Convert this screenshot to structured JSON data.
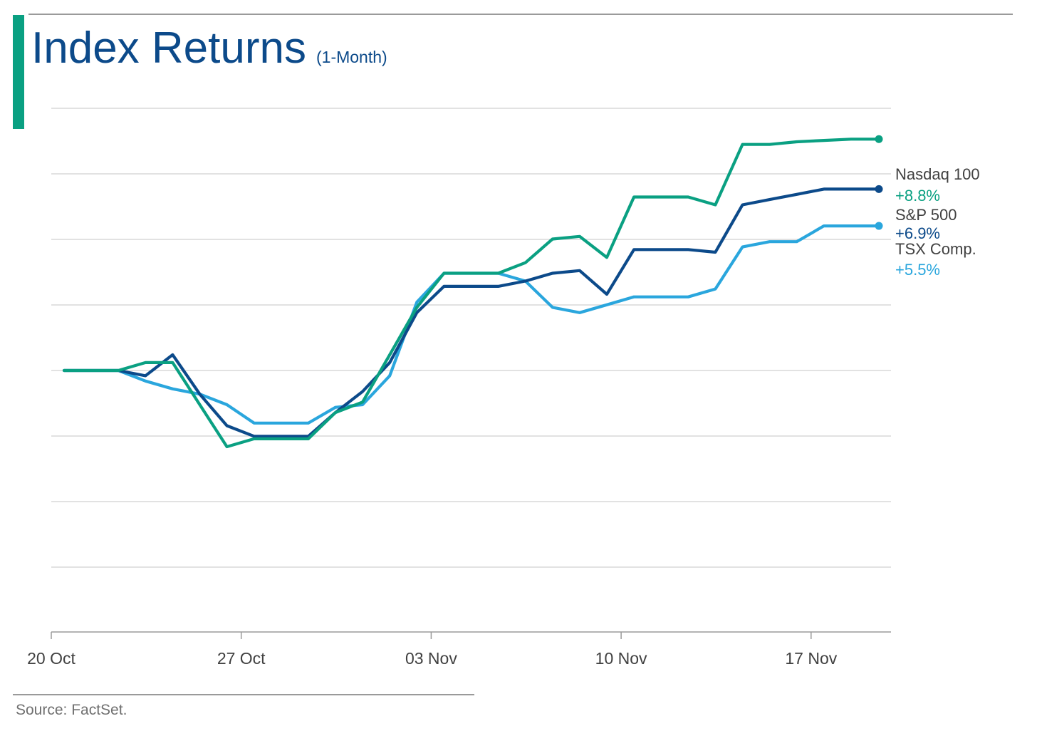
{
  "header": {
    "title": "Index Returns",
    "subtitle": "(1-Month)"
  },
  "footer": {
    "source": "Source: FactSet."
  },
  "colors": {
    "nasdaq": "#0aa082",
    "sp500": "#0c4a8a",
    "tsx": "#2aa6dd",
    "grid": "#d0d0d0",
    "axis": "#9a9a9a"
  },
  "chart_data": {
    "type": "line",
    "title": "Index Returns",
    "subtitle": "(1-Month)",
    "xlabel": "",
    "ylabel": "",
    "grid": true,
    "legend_position": "right",
    "x_ticks": [
      {
        "label": "20 Oct",
        "day": 0
      },
      {
        "label": "27 Oct",
        "day": 7
      },
      {
        "label": "03 Nov",
        "day": 14
      },
      {
        "label": "10 Nov",
        "day": 21
      },
      {
        "label": "17 Nov",
        "day": 28
      }
    ],
    "series": [
      {
        "key": "tsx",
        "name": "TSX Comp.",
        "label_value": "+5.5%",
        "points": [
          [
            0,
            0
          ],
          [
            1,
            0
          ],
          [
            2,
            0
          ],
          [
            3,
            -0.4
          ],
          [
            4,
            -0.7
          ],
          [
            5,
            -0.9
          ],
          [
            6,
            -1.3
          ],
          [
            7,
            -2.0
          ],
          [
            8,
            -2.0
          ],
          [
            9,
            -2.0
          ],
          [
            10,
            -1.4
          ],
          [
            11,
            -1.3
          ],
          [
            12,
            -0.2
          ],
          [
            13,
            2.6
          ],
          [
            14,
            3.7
          ],
          [
            15,
            3.7
          ],
          [
            16,
            3.7
          ],
          [
            17,
            3.4
          ],
          [
            18,
            2.4
          ],
          [
            19,
            2.2
          ],
          [
            20,
            2.5
          ],
          [
            21,
            2.8
          ],
          [
            22,
            2.8
          ],
          [
            23,
            2.8
          ],
          [
            24,
            3.1
          ],
          [
            25,
            4.7
          ],
          [
            26,
            4.9
          ],
          [
            27,
            4.9
          ],
          [
            28,
            5.5
          ],
          [
            29,
            5.5
          ],
          [
            30,
            5.5
          ]
        ]
      },
      {
        "key": "sp500",
        "name": "S&P 500",
        "label_value": "+6.9%",
        "points": [
          [
            0,
            0
          ],
          [
            1,
            0
          ],
          [
            2,
            0
          ],
          [
            3,
            -0.2
          ],
          [
            4,
            0.6
          ],
          [
            5,
            -0.9
          ],
          [
            6,
            -2.1
          ],
          [
            7,
            -2.5
          ],
          [
            8,
            -2.5
          ],
          [
            9,
            -2.5
          ],
          [
            10,
            -1.6
          ],
          [
            11,
            -0.8
          ],
          [
            12,
            0.3
          ],
          [
            13,
            2.2
          ],
          [
            14,
            3.2
          ],
          [
            15,
            3.2
          ],
          [
            16,
            3.2
          ],
          [
            17,
            3.4
          ],
          [
            18,
            3.7
          ],
          [
            19,
            3.8
          ],
          [
            20,
            2.9
          ],
          [
            21,
            4.6
          ],
          [
            22,
            4.6
          ],
          [
            23,
            4.6
          ],
          [
            24,
            4.5
          ],
          [
            25,
            6.3
          ],
          [
            26,
            6.5
          ],
          [
            27,
            6.7
          ],
          [
            28,
            6.9
          ],
          [
            29,
            6.9
          ],
          [
            30,
            6.9
          ]
        ]
      },
      {
        "key": "nasdaq",
        "name": "Nasdaq 100",
        "label_value": "+8.8%",
        "points": [
          [
            0,
            0
          ],
          [
            1,
            0
          ],
          [
            2,
            0
          ],
          [
            3,
            0.3
          ],
          [
            4,
            0.3
          ],
          [
            5,
            -1.3
          ],
          [
            6,
            -2.9
          ],
          [
            7,
            -2.6
          ],
          [
            8,
            -2.6
          ],
          [
            9,
            -2.6
          ],
          [
            10,
            -1.6
          ],
          [
            11,
            -1.2
          ],
          [
            12,
            0.6
          ],
          [
            13,
            2.4
          ],
          [
            14,
            3.7
          ],
          [
            15,
            3.7
          ],
          [
            16,
            3.7
          ],
          [
            17,
            4.1
          ],
          [
            18,
            5.0
          ],
          [
            19,
            5.1
          ],
          [
            20,
            4.3
          ],
          [
            21,
            6.6
          ],
          [
            22,
            6.6
          ],
          [
            23,
            6.6
          ],
          [
            24,
            6.3
          ],
          [
            25,
            8.6
          ],
          [
            26,
            8.6
          ],
          [
            27,
            8.7
          ],
          [
            28,
            8.75
          ],
          [
            29,
            8.8
          ],
          [
            30,
            8.8
          ]
        ]
      }
    ]
  }
}
